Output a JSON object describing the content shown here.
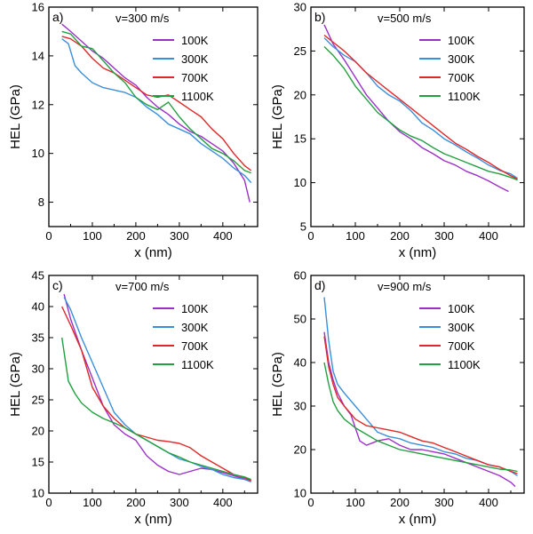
{
  "colors": {
    "100K": "#9b30c8",
    "300K": "#3a8fdc",
    "700K": "#e02828",
    "1100K": "#22a040"
  },
  "chart_data": [
    {
      "type": "line",
      "panel": "a)",
      "title": "v=300 m/s",
      "xlabel": "x (nm)",
      "ylabel": "HEL (GPa)",
      "xlim": [
        0,
        480
      ],
      "ylim": [
        7,
        16
      ],
      "xticks": [
        0,
        100,
        200,
        300,
        400
      ],
      "yticks": [
        8,
        10,
        12,
        14,
        16
      ],
      "legend": "top-right",
      "series": [
        {
          "name": "100K",
          "x": [
            30,
            50,
            75,
            100,
            125,
            150,
            175,
            200,
            225,
            250,
            275,
            300,
            325,
            350,
            375,
            400,
            425,
            450,
            462
          ],
          "y": [
            15.3,
            15.0,
            14.6,
            14.2,
            13.9,
            13.5,
            13.1,
            12.8,
            12.3,
            11.9,
            11.6,
            11.2,
            10.9,
            10.7,
            10.4,
            10.1,
            9.6,
            8.9,
            8.0
          ]
        },
        {
          "name": "300K",
          "x": [
            30,
            45,
            60,
            75,
            100,
            125,
            150,
            175,
            200,
            225,
            250,
            275,
            300,
            325,
            350,
            375,
            400,
            425,
            450,
            465
          ],
          "y": [
            14.7,
            14.5,
            13.6,
            13.3,
            12.9,
            12.7,
            12.6,
            12.5,
            12.3,
            11.9,
            11.6,
            11.2,
            11.0,
            10.8,
            10.4,
            10.1,
            9.8,
            9.4,
            9.1,
            8.8
          ]
        },
        {
          "name": "700K",
          "x": [
            30,
            50,
            75,
            100,
            125,
            150,
            175,
            200,
            225,
            250,
            275,
            300,
            325,
            350,
            375,
            400,
            425,
            450,
            465
          ],
          "y": [
            14.8,
            14.7,
            14.4,
            13.9,
            13.5,
            13.3,
            13.0,
            12.7,
            12.4,
            12.3,
            12.4,
            12.1,
            11.8,
            11.5,
            11.0,
            10.6,
            10.0,
            9.5,
            9.3
          ]
        },
        {
          "name": "1100K",
          "x": [
            30,
            50,
            75,
            100,
            125,
            150,
            175,
            200,
            225,
            250,
            275,
            300,
            325,
            350,
            375,
            400,
            425,
            450,
            465
          ],
          "y": [
            15.0,
            14.9,
            14.4,
            14.3,
            13.8,
            13.3,
            12.9,
            12.3,
            12.0,
            11.8,
            12.1,
            11.5,
            11.0,
            10.6,
            10.2,
            10.0,
            9.7,
            9.3,
            9.2
          ]
        }
      ]
    },
    {
      "type": "line",
      "panel": "b)",
      "title": "v=500 m/s",
      "xlabel": "x (nm)",
      "ylabel": "HEL (GPa)",
      "xlim": [
        0,
        480
      ],
      "ylim": [
        5,
        30
      ],
      "xticks": [
        0,
        100,
        200,
        300,
        400
      ],
      "yticks": [
        5,
        10,
        15,
        20,
        25,
        30
      ],
      "legend": "top-right",
      "series": [
        {
          "name": "100K",
          "x": [
            30,
            50,
            75,
            100,
            125,
            150,
            175,
            200,
            225,
            250,
            275,
            300,
            325,
            350,
            375,
            400,
            425,
            445
          ],
          "y": [
            28.0,
            25.8,
            24.0,
            22.0,
            20.0,
            18.5,
            17.0,
            15.8,
            15.0,
            14.0,
            13.3,
            12.5,
            12.0,
            11.3,
            10.8,
            10.2,
            9.5,
            9.0
          ]
        },
        {
          "name": "300K",
          "x": [
            30,
            50,
            75,
            100,
            125,
            150,
            175,
            200,
            225,
            250,
            275,
            300,
            325,
            350,
            375,
            400,
            425,
            450,
            465
          ],
          "y": [
            26.5,
            25.5,
            24.5,
            23.8,
            22.5,
            21.0,
            20.0,
            19.3,
            18.2,
            16.8,
            16.0,
            15.0,
            14.3,
            13.5,
            12.8,
            12.0,
            11.4,
            11.0,
            10.5
          ]
        },
        {
          "name": "700K",
          "x": [
            30,
            50,
            75,
            100,
            125,
            150,
            175,
            200,
            225,
            250,
            275,
            300,
            325,
            350,
            375,
            400,
            425,
            450,
            465
          ],
          "y": [
            26.8,
            26.0,
            25.0,
            23.8,
            22.5,
            21.5,
            20.5,
            19.5,
            18.5,
            17.5,
            16.5,
            15.5,
            14.5,
            13.8,
            13.0,
            12.3,
            11.5,
            10.8,
            10.4
          ]
        },
        {
          "name": "1100K",
          "x": [
            30,
            50,
            75,
            100,
            125,
            150,
            175,
            200,
            225,
            250,
            275,
            300,
            325,
            350,
            375,
            400,
            425,
            450,
            465
          ],
          "y": [
            25.5,
            24.5,
            23.0,
            21.0,
            19.5,
            18.0,
            17.0,
            16.0,
            15.3,
            14.8,
            14.0,
            13.3,
            12.8,
            12.3,
            11.8,
            11.3,
            11.0,
            10.6,
            10.3
          ]
        }
      ]
    },
    {
      "type": "line",
      "panel": "c)",
      "title": "v=700 m/s",
      "xlabel": "x (nm)",
      "ylabel": "HEL (GPa)",
      "xlim": [
        0,
        480
      ],
      "ylim": [
        10,
        45
      ],
      "xticks": [
        0,
        100,
        200,
        300,
        400
      ],
      "yticks": [
        10,
        15,
        20,
        25,
        30,
        35,
        40,
        45
      ],
      "legend": "top-right",
      "series": [
        {
          "name": "100K",
          "x": [
            35,
            50,
            75,
            100,
            125,
            150,
            175,
            200,
            225,
            250,
            275,
            300,
            325,
            350,
            375,
            400,
            425,
            450,
            465
          ],
          "y": [
            42.0,
            38.0,
            33.0,
            28.5,
            24.0,
            21.0,
            19.5,
            18.5,
            16.0,
            14.5,
            13.5,
            13.0,
            13.5,
            14.0,
            13.8,
            13.3,
            12.8,
            12.3,
            12.0
          ]
        },
        {
          "name": "300K",
          "x": [
            35,
            50,
            75,
            100,
            125,
            150,
            175,
            200,
            225,
            250,
            275,
            300,
            325,
            350,
            375,
            400,
            425,
            450,
            465
          ],
          "y": [
            41.5,
            39.5,
            35.0,
            31.0,
            27.0,
            23.0,
            21.0,
            19.5,
            18.5,
            17.5,
            16.5,
            15.5,
            15.0,
            14.3,
            13.8,
            13.0,
            12.5,
            12.2,
            11.8
          ]
        },
        {
          "name": "700K",
          "x": [
            30,
            50,
            75,
            100,
            125,
            150,
            175,
            200,
            225,
            250,
            275,
            300,
            325,
            350,
            375,
            400,
            425,
            450,
            465
          ],
          "y": [
            40.0,
            37.0,
            33.0,
            27.0,
            24.0,
            22.0,
            20.5,
            19.5,
            19.0,
            18.5,
            18.3,
            18.0,
            17.3,
            16.0,
            15.0,
            14.0,
            13.0,
            12.5,
            12.0
          ]
        },
        {
          "name": "1100K",
          "x": [
            30,
            45,
            60,
            75,
            100,
            125,
            150,
            175,
            200,
            225,
            250,
            275,
            300,
            325,
            350,
            375,
            400,
            425,
            450,
            465
          ],
          "y": [
            35.0,
            28.0,
            26.0,
            24.5,
            23.0,
            22.0,
            21.3,
            20.5,
            19.5,
            18.5,
            17.5,
            16.5,
            15.8,
            15.0,
            14.5,
            14.0,
            13.5,
            13.0,
            12.6,
            12.2
          ]
        }
      ]
    },
    {
      "type": "line",
      "panel": "d)",
      "title": "v=900 m/s",
      "xlabel": "x (nm)",
      "ylabel": "HEL (GPa)",
      "xlim": [
        0,
        480
      ],
      "ylim": [
        10,
        60
      ],
      "xticks": [
        0,
        100,
        200,
        300,
        400
      ],
      "yticks": [
        10,
        20,
        30,
        40,
        50,
        60
      ],
      "legend": "top-right",
      "series": [
        {
          "name": "100K",
          "x": [
            30,
            40,
            50,
            60,
            75,
            90,
            100,
            110,
            125,
            150,
            175,
            200,
            225,
            250,
            275,
            300,
            325,
            350,
            375,
            400,
            425,
            450,
            460
          ],
          "y": [
            47.0,
            40.0,
            36.0,
            33.0,
            30.0,
            28.0,
            25.0,
            22.0,
            21.0,
            22.0,
            22.5,
            21.0,
            20.0,
            20.0,
            19.5,
            19.0,
            18.0,
            17.0,
            16.0,
            15.0,
            14.0,
            12.5,
            11.5
          ]
        },
        {
          "name": "300K",
          "x": [
            30,
            40,
            50,
            60,
            75,
            100,
            125,
            150,
            175,
            200,
            225,
            250,
            275,
            300,
            325,
            350,
            375,
            400,
            425,
            450,
            465
          ],
          "y": [
            55.0,
            45.0,
            38.0,
            35.0,
            33.0,
            30.0,
            27.0,
            24.0,
            23.0,
            22.5,
            21.5,
            21.0,
            20.5,
            19.5,
            19.0,
            18.0,
            17.5,
            16.5,
            16.0,
            15.0,
            14.0
          ]
        },
        {
          "name": "700K",
          "x": [
            30,
            40,
            50,
            60,
            75,
            100,
            125,
            150,
            175,
            200,
            225,
            250,
            275,
            300,
            325,
            350,
            375,
            400,
            425,
            450,
            465
          ],
          "y": [
            46.0,
            39.0,
            35.0,
            32.0,
            30.0,
            27.0,
            25.5,
            25.0,
            24.5,
            24.0,
            23.0,
            22.0,
            21.5,
            20.5,
            19.5,
            18.5,
            17.5,
            16.5,
            16.0,
            15.0,
            14.5
          ]
        },
        {
          "name": "1100K",
          "x": [
            30,
            40,
            50,
            60,
            75,
            100,
            125,
            150,
            175,
            200,
            225,
            250,
            275,
            300,
            325,
            350,
            375,
            400,
            425,
            450,
            465
          ],
          "y": [
            40.0,
            35.0,
            31.0,
            29.0,
            27.0,
            25.0,
            23.5,
            22.0,
            21.0,
            20.0,
            19.5,
            19.0,
            18.5,
            18.0,
            17.5,
            17.0,
            16.5,
            16.0,
            15.5,
            15.3,
            15.0
          ]
        }
      ]
    }
  ]
}
